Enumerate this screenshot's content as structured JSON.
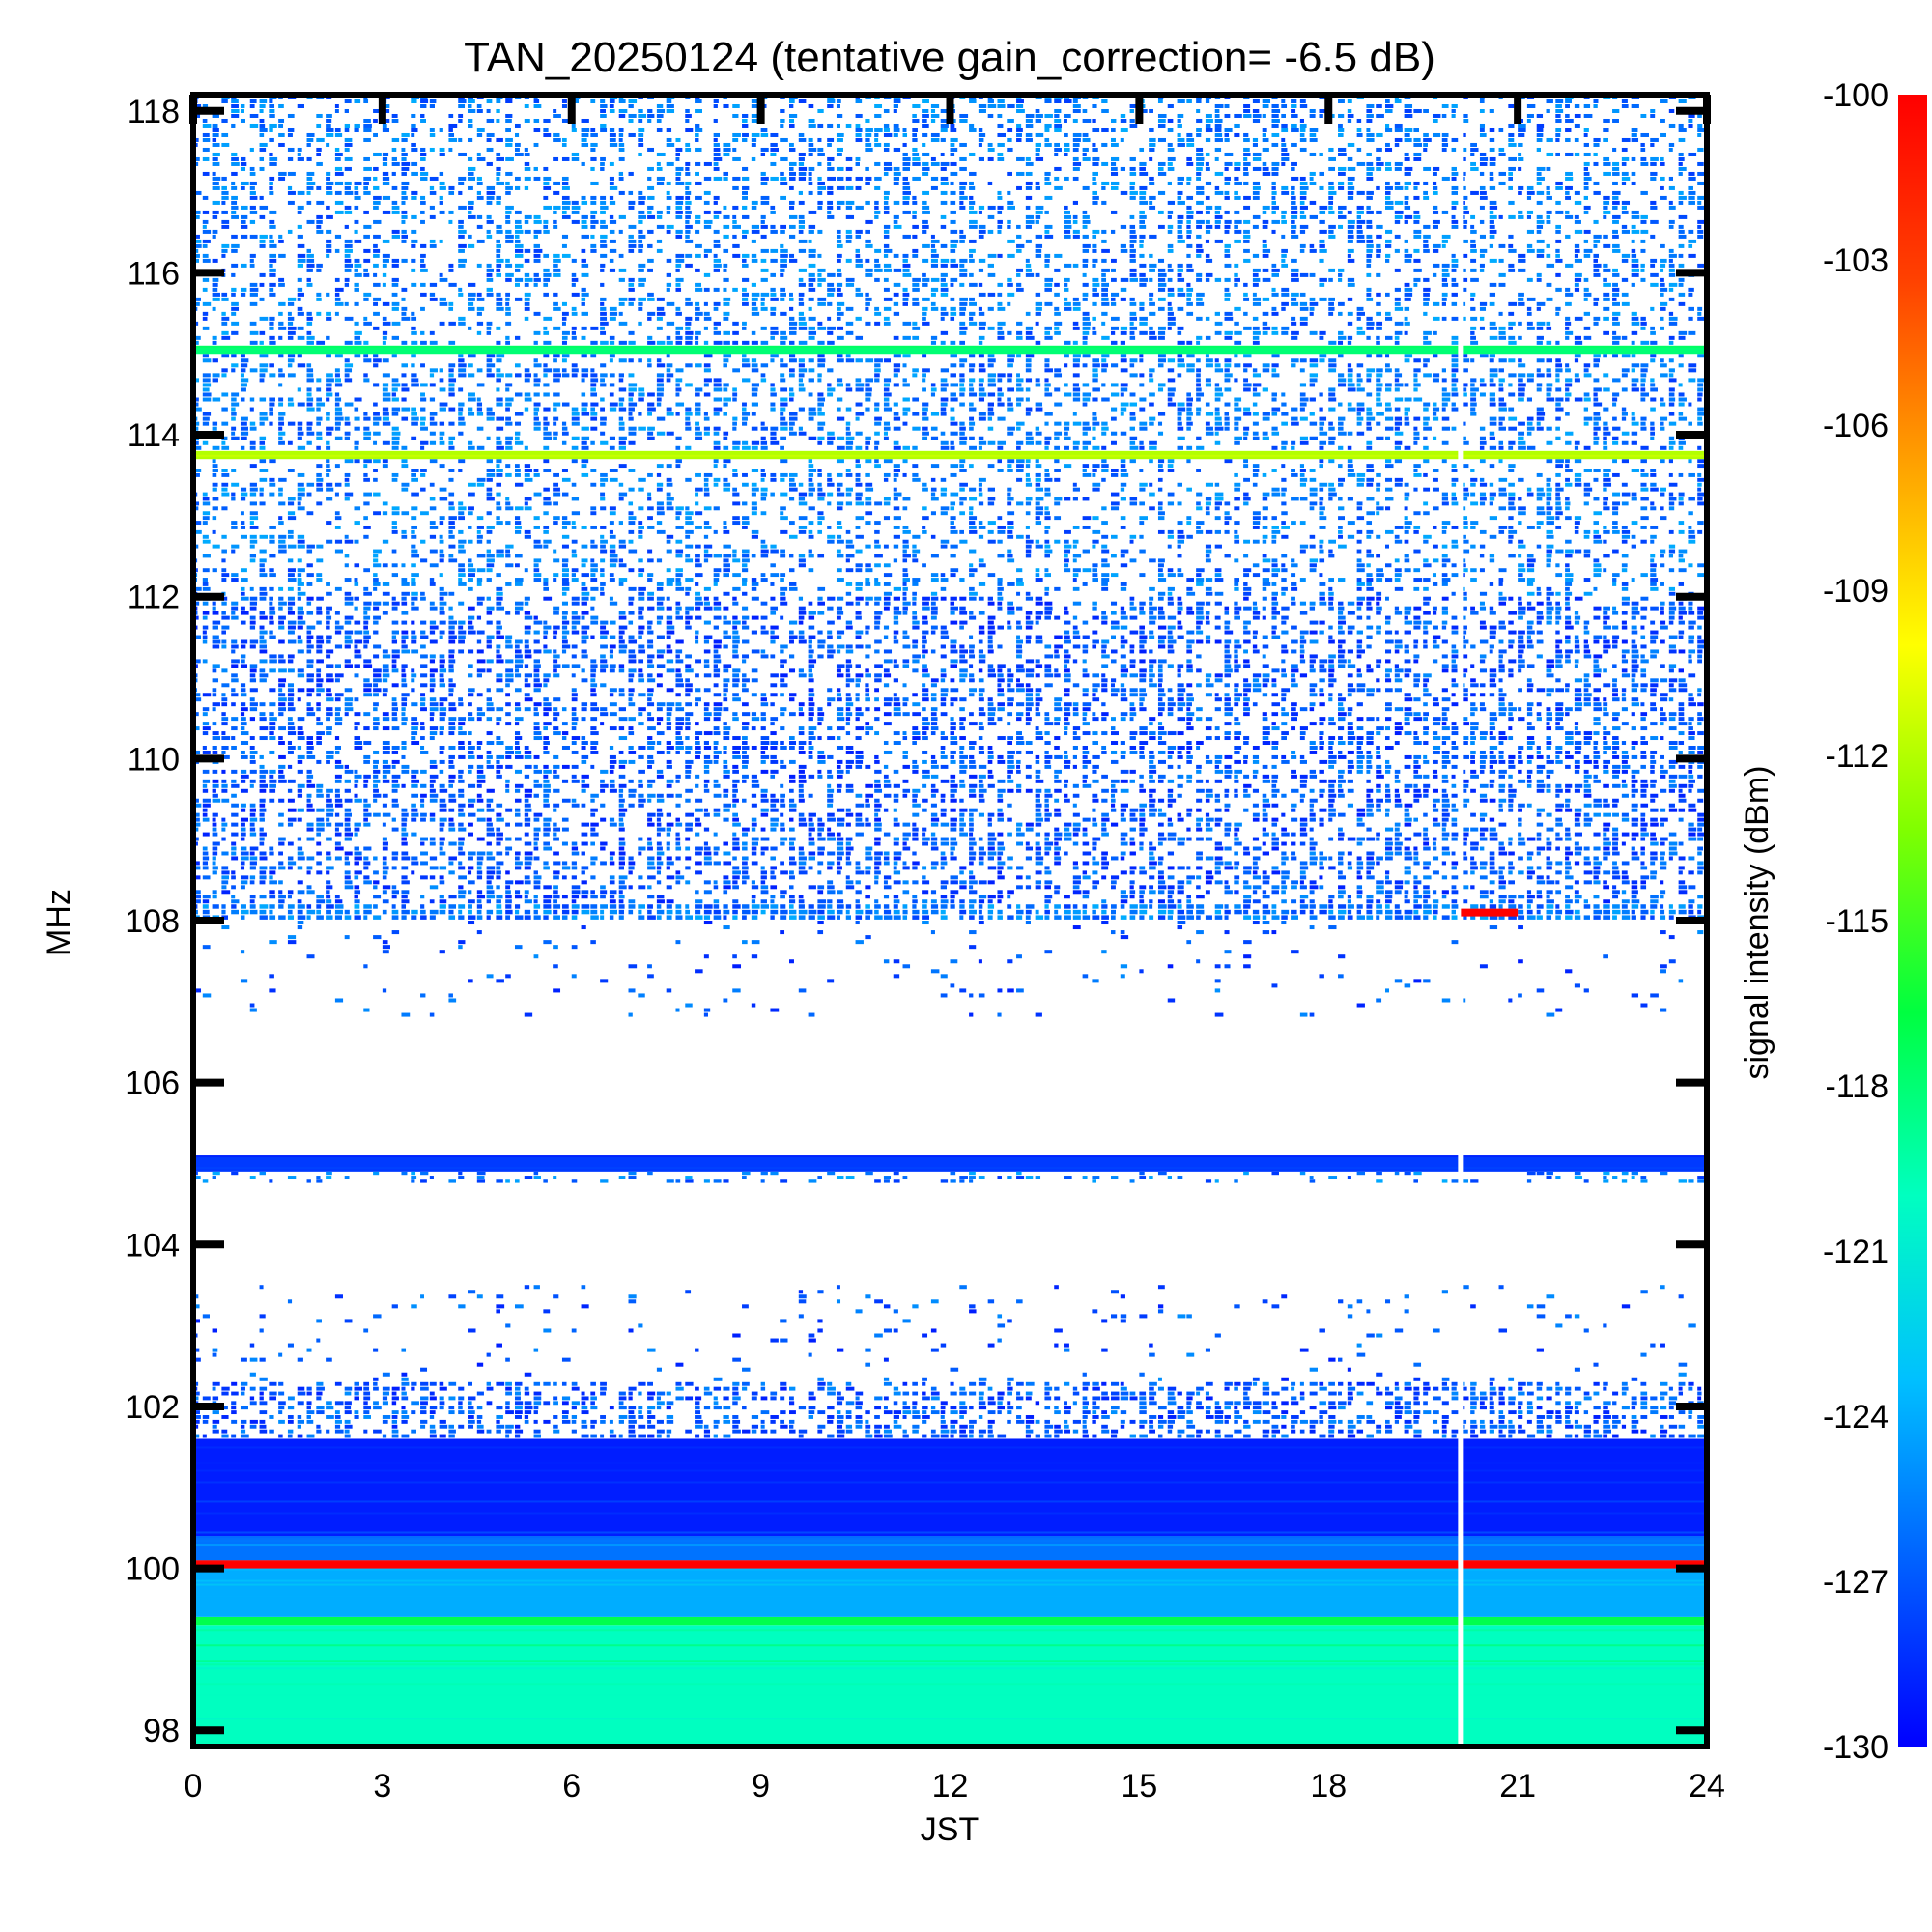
{
  "chart_data": {
    "type": "heatmap",
    "title": "TAN_20250124 (tentative gain_correction= -6.5 dB)",
    "xlabel": "JST",
    "ylabel": "MHz",
    "colorbar_label": "signal intensity (dBm)",
    "xlim": [
      0,
      24
    ],
    "ylim": [
      97.8,
      118.2
    ],
    "x_ticks": [
      "0",
      "3",
      "6",
      "9",
      "12",
      "15",
      "18",
      "21",
      "24"
    ],
    "y_ticks": [
      "98",
      "100",
      "102",
      "104",
      "106",
      "108",
      "110",
      "112",
      "114",
      "116",
      "118"
    ],
    "colorbar_ticks": [
      "-100",
      "-103",
      "-106",
      "-109",
      "-112",
      "-115",
      "-118",
      "-121",
      "-124",
      "-127",
      "-130"
    ],
    "colorbar_range": [
      -130,
      -100
    ],
    "colormap": [
      "#0000ff",
      "#0060ff",
      "#00c0ff",
      "#00ffc0",
      "#00ff40",
      "#80ff00",
      "#ffff00",
      "#ffa000",
      "#ff4000",
      "#ff0000"
    ],
    "data_gap_jst": 20.1,
    "bands": [
      {
        "from_mhz": 97.8,
        "to_mhz": 99.3,
        "dbm": -120,
        "density": 1.0
      },
      {
        "from_mhz": 99.3,
        "to_mhz": 99.4,
        "dbm": -117,
        "density": 1.0
      },
      {
        "from_mhz": 99.4,
        "to_mhz": 100.0,
        "dbm": -124,
        "density": 1.0
      },
      {
        "from_mhz": 100.0,
        "to_mhz": 100.1,
        "dbm": -100,
        "density": 1.0
      },
      {
        "from_mhz": 100.1,
        "to_mhz": 100.4,
        "dbm": -126,
        "density": 1.0
      },
      {
        "from_mhz": 100.4,
        "to_mhz": 101.6,
        "dbm": -129,
        "density": 1.0
      },
      {
        "from_mhz": 101.6,
        "to_mhz": 102.3,
        "dbm": -129,
        "density": 0.6
      },
      {
        "from_mhz": 102.3,
        "to_mhz": 103.5,
        "dbm": -129,
        "density": 0.06
      },
      {
        "from_mhz": 104.9,
        "to_mhz": 105.1,
        "dbm": -128,
        "density": 1.0
      },
      {
        "from_mhz": 104.75,
        "to_mhz": 104.9,
        "dbm": -128,
        "density": 0.3
      },
      {
        "from_mhz": 106.8,
        "to_mhz": 108.0,
        "dbm": -129,
        "density": 0.05
      },
      {
        "from_mhz": 108.0,
        "to_mhz": 108.2,
        "dbm": -128,
        "density": 0.9
      },
      {
        "from_mhz": 108.2,
        "to_mhz": 112.0,
        "dbm": -129,
        "density": 0.55
      },
      {
        "from_mhz": 112.0,
        "to_mhz": 113.7,
        "dbm": -128,
        "density": 0.4
      },
      {
        "from_mhz": 113.7,
        "to_mhz": 113.8,
        "dbm": -112,
        "density": 1.0
      },
      {
        "from_mhz": 113.8,
        "to_mhz": 115.0,
        "dbm": -128,
        "density": 0.5
      },
      {
        "from_mhz": 115.0,
        "to_mhz": 115.1,
        "dbm": -118,
        "density": 1.0
      },
      {
        "from_mhz": 115.1,
        "to_mhz": 118.2,
        "dbm": -128,
        "density": 0.45
      }
    ],
    "short_signals": [
      {
        "jst_from": 20.1,
        "jst_to": 21.0,
        "mhz": 108.1,
        "dbm": -100
      }
    ]
  }
}
